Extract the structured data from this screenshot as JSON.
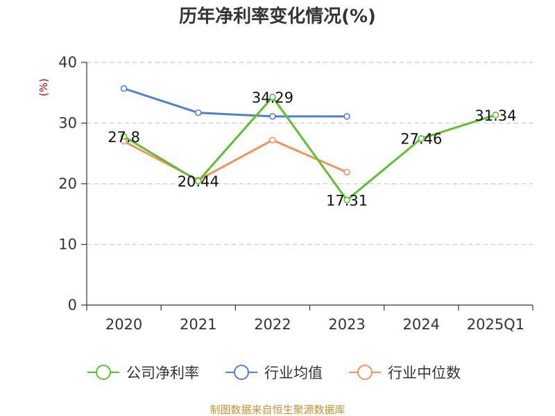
{
  "chart_data": {
    "type": "line",
    "title": "历年净利率变化情况(%)",
    "ylabel": "(%)",
    "xlabel": "",
    "categories": [
      "2020",
      "2021",
      "2022",
      "2023",
      "2024",
      "2025Q1"
    ],
    "ylim": [
      0,
      40
    ],
    "yticks": [
      0,
      10,
      20,
      30,
      40
    ],
    "grid": true,
    "legend_position": "bottom",
    "series": [
      {
        "name": "公司净利率",
        "color": "#5cc12a",
        "values": [
          27.8,
          20.44,
          34.29,
          17.31,
          27.46,
          31.34
        ],
        "labels": [
          "27.8",
          "20.44",
          "34.29",
          "17.31",
          "27.46",
          "31.34"
        ]
      },
      {
        "name": "行业均值",
        "color": "#4a7fdc",
        "values": [
          35.7,
          31.7,
          31.1,
          31.1,
          null,
          null
        ]
      },
      {
        "name": "行业中位数",
        "color": "#f5915b",
        "values": [
          27.0,
          20.6,
          27.2,
          21.9,
          null,
          null
        ]
      }
    ]
  },
  "footer": {
    "source": "制图数据来自恒生聚源数据库"
  }
}
